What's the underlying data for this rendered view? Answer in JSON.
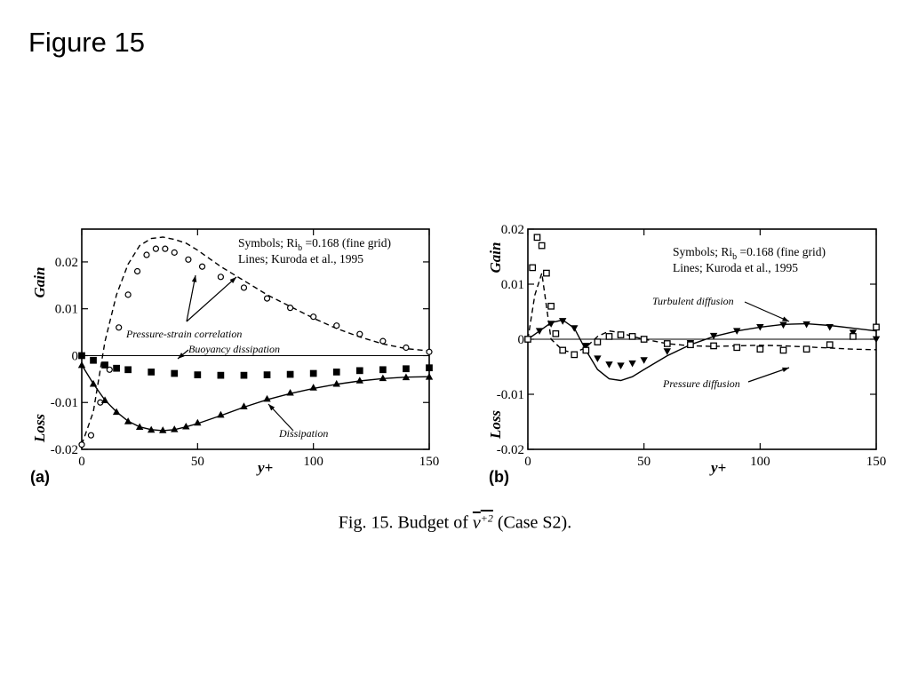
{
  "slide": {
    "title": "Figure 15"
  },
  "caption": {
    "prefix": "Fig. 15. Budget of",
    "var": "v",
    "sup": "+2",
    "suffix": "(Case S2)."
  },
  "chart_data": [
    {
      "type": "line",
      "panel_label": "(a)",
      "xlabel": "y+",
      "ylabel_top": "Gain",
      "ylabel_bottom": "Loss",
      "xlim": [
        0,
        150
      ],
      "ylim": [
        -0.02,
        0.027
      ],
      "xticks": [
        "0",
        "50",
        "100",
        "150"
      ],
      "yticks": [
        {
          "v": 0.02,
          "label": "0.02"
        },
        {
          "v": 0.01,
          "label": "0.01"
        },
        {
          "v": 0,
          "label": "0"
        },
        {
          "v": -0.01,
          "label": "-0.01"
        },
        {
          "v": -0.02,
          "label": "-0.02"
        }
      ],
      "legend": {
        "line1": "Symbols; Ri",
        "sub": "b",
        "line1b": " =0.168 (fine grid)",
        "line2": "Lines; Kuroda et al., 1995"
      },
      "annotations": [
        "Pressure-strain correlation",
        "Buoyancy dissipation",
        "Dissipation"
      ],
      "series": [
        {
          "name": "Pressure-strain correlation",
          "style": "dashed",
          "x": [
            0,
            5,
            10,
            15,
            20,
            25,
            30,
            35,
            40,
            45,
            50,
            60,
            70,
            80,
            90,
            100,
            110,
            120,
            130,
            140,
            150
          ],
          "y": [
            -0.019,
            -0.012,
            0.003,
            0.013,
            0.0195,
            0.0235,
            0.025,
            0.0253,
            0.0248,
            0.024,
            0.0225,
            0.019,
            0.016,
            0.013,
            0.0105,
            0.008,
            0.0058,
            0.004,
            0.0025,
            0.0015,
            0.001
          ]
        },
        {
          "name": "Pressure-strain correlation",
          "style": "circles",
          "x": [
            0,
            4,
            8,
            12,
            16,
            20,
            24,
            28,
            32,
            36,
            40,
            46,
            52,
            60,
            70,
            80,
            90,
            100,
            110,
            120,
            130,
            140,
            150
          ],
          "y": [
            -0.019,
            -0.017,
            -0.01,
            -0.003,
            0.006,
            0.013,
            0.018,
            0.0215,
            0.0228,
            0.0228,
            0.022,
            0.0205,
            0.019,
            0.0168,
            0.0145,
            0.0122,
            0.0102,
            0.0083,
            0.0064,
            0.0046,
            0.0031,
            0.0017,
            0.0008
          ]
        },
        {
          "name": "Buoyancy dissipation",
          "style": "squares",
          "x": [
            0,
            5,
            10,
            15,
            20,
            30,
            40,
            50,
            60,
            70,
            80,
            90,
            100,
            110,
            120,
            130,
            140,
            150
          ],
          "y": [
            0,
            -0.001,
            -0.002,
            -0.0027,
            -0.003,
            -0.0035,
            -0.0038,
            -0.0041,
            -0.0042,
            -0.0042,
            -0.0041,
            -0.004,
            -0.0038,
            -0.0035,
            -0.0032,
            -0.003,
            -0.0028,
            -0.0026
          ]
        },
        {
          "name": "Dissipation",
          "style": "solid",
          "x": [
            0,
            5,
            10,
            15,
            20,
            25,
            30,
            35,
            40,
            45,
            50,
            60,
            70,
            80,
            90,
            100,
            110,
            120,
            130,
            140,
            150
          ],
          "y": [
            -0.002,
            -0.006,
            -0.0095,
            -0.012,
            -0.014,
            -0.0152,
            -0.0158,
            -0.016,
            -0.0158,
            -0.0152,
            -0.0145,
            -0.0128,
            -0.011,
            -0.0094,
            -0.0081,
            -0.007,
            -0.0061,
            -0.0054,
            -0.0049,
            -0.0046,
            -0.0045
          ]
        },
        {
          "name": "Dissipation",
          "style": "triangles",
          "x": [
            0,
            5,
            10,
            15,
            20,
            25,
            30,
            35,
            40,
            45,
            50,
            60,
            70,
            80,
            90,
            100,
            110,
            120,
            130,
            140,
            150
          ],
          "y": [
            -0.002,
            -0.006,
            -0.0095,
            -0.012,
            -0.014,
            -0.0152,
            -0.0158,
            -0.0159,
            -0.0157,
            -0.0151,
            -0.0143,
            -0.0126,
            -0.0108,
            -0.0092,
            -0.0079,
            -0.0068,
            -0.006,
            -0.0053,
            -0.0048,
            -0.0046,
            -0.0045
          ]
        }
      ]
    },
    {
      "type": "line",
      "panel_label": "(b)",
      "xlabel": "y+",
      "ylabel_top": "Gain",
      "ylabel_bottom": "Loss",
      "xlim": [
        0,
        150
      ],
      "ylim": [
        -0.02,
        0.02
      ],
      "xticks": [
        "0",
        "50",
        "100",
        "150"
      ],
      "yticks": [
        {
          "v": 0.02,
          "label": "0.02"
        },
        {
          "v": 0.01,
          "label": "0.01"
        },
        {
          "v": 0,
          "label": "0"
        },
        {
          "v": -0.01,
          "label": "-0.01"
        },
        {
          "v": -0.02,
          "label": "-0.02"
        }
      ],
      "legend": {
        "line1": "Symbols; Ri",
        "sub": "b",
        "line1b": " =0.168 (fine grid)",
        "line2": "Lines; Kuroda et al., 1995"
      },
      "annotations": [
        "Turbulent diffusion",
        "Pressure diffusion"
      ],
      "series": [
        {
          "name": "Turbulent diffusion",
          "style": "solid",
          "x": [
            0,
            5,
            10,
            15,
            20,
            25,
            30,
            35,
            40,
            45,
            50,
            60,
            70,
            80,
            90,
            100,
            110,
            120,
            130,
            140,
            150
          ],
          "y": [
            0,
            0.0015,
            0.003,
            0.0035,
            0.002,
            -0.002,
            -0.0055,
            -0.0072,
            -0.0075,
            -0.0068,
            -0.0055,
            -0.003,
            -0.001,
            0.0005,
            0.0015,
            0.0022,
            0.0027,
            0.0028,
            0.0025,
            0.002,
            0.0015
          ]
        },
        {
          "name": "Turbulent diffusion",
          "style": "triangles",
          "x": [
            0,
            5,
            10,
            15,
            20,
            25,
            30,
            35,
            40,
            45,
            50,
            60,
            70,
            80,
            90,
            100,
            110,
            120,
            130,
            140,
            150
          ],
          "y": [
            0,
            0.0015,
            0.0028,
            0.0033,
            0.002,
            -0.0012,
            -0.0035,
            -0.0046,
            -0.0048,
            -0.0044,
            -0.0038,
            -0.0022,
            -0.0007,
            0.0006,
            0.0015,
            0.0022,
            0.0026,
            0.0027,
            0.0022,
            0.0012,
            0
          ]
        },
        {
          "name": "Pressure diffusion",
          "style": "dashed",
          "x": [
            0,
            3,
            6,
            10,
            15,
            20,
            25,
            30,
            35,
            40,
            45,
            50,
            60,
            70,
            80,
            90,
            100,
            110,
            120,
            130,
            140,
            150
          ],
          "y": [
            0,
            0.008,
            0.012,
            0.0,
            -0.002,
            -0.0025,
            -0.0015,
            0.0005,
            0.0015,
            0.0012,
            0.0005,
            0,
            -0.0008,
            -0.0012,
            -0.0013,
            -0.0012,
            -0.0011,
            -0.0012,
            -0.0014,
            -0.0016,
            -0.0018,
            -0.0019
          ]
        },
        {
          "name": "Pressure diffusion",
          "style": "squares",
          "x": [
            0,
            2,
            4,
            6,
            8,
            10,
            12,
            15,
            20,
            25,
            30,
            35,
            40,
            45,
            50,
            60,
            70,
            80,
            90,
            100,
            110,
            120,
            130,
            140,
            150
          ],
          "y": [
            0,
            0.013,
            0.0185,
            0.017,
            0.012,
            0.006,
            0.001,
            -0.002,
            -0.0028,
            -0.002,
            -0.0005,
            0.0005,
            0.0008,
            0.0005,
            0,
            -0.0008,
            -0.001,
            -0.0012,
            -0.0015,
            -0.0018,
            -0.002,
            -0.0018,
            -0.001,
            0.0005,
            0.0022
          ]
        }
      ]
    }
  ]
}
